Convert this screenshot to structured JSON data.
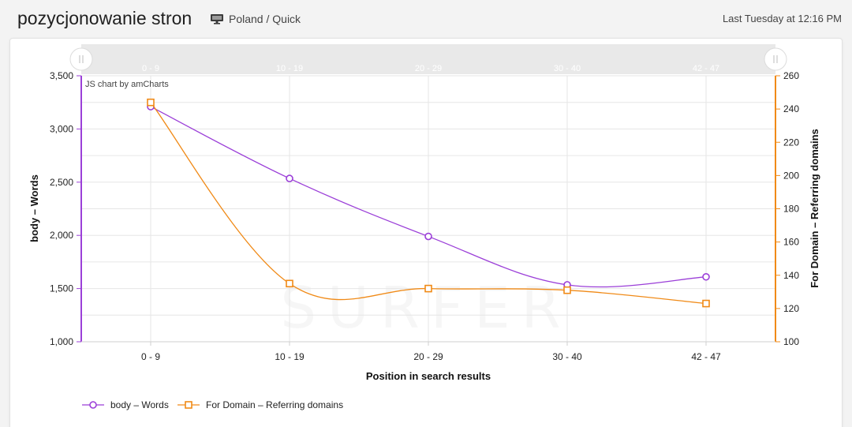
{
  "header": {
    "title": "pozycjonowanie stron",
    "region": "Poland / Quick",
    "timestamp": "Last Tuesday at 12:16 PM"
  },
  "chart_data": {
    "type": "line",
    "categories": [
      "0 - 9",
      "10 - 19",
      "20 - 29",
      "30 - 40",
      "42 - 47"
    ],
    "series": [
      {
        "name": "body – Words",
        "axis": "left",
        "values": [
          3210,
          2535,
          1990,
          1535,
          1610
        ],
        "color": "#9b3fd8",
        "marker": "circle"
      },
      {
        "name": "For Domain – Referring domains",
        "axis": "right",
        "values": [
          244,
          135,
          132,
          131,
          123
        ],
        "color": "#f08a17",
        "marker": "square"
      }
    ],
    "xlabel": "Position in search results",
    "ylabel_left": "body – Words",
    "ylabel_right": "For Domain – Referring domains",
    "ylim_left": [
      1000,
      3500
    ],
    "yticks_left": [
      "1,000",
      "1,500",
      "2,000",
      "2,500",
      "3,000",
      "3,500"
    ],
    "ylim_right": [
      100,
      260
    ],
    "yticks_right": [
      "100",
      "120",
      "140",
      "160",
      "180",
      "200",
      "220",
      "240",
      "260"
    ],
    "grid": true,
    "legend": "bottom-left",
    "credit": "JS chart by amCharts",
    "watermark": "SURFER",
    "scrollbar_labels": [
      "0 - 9",
      "10 - 19",
      "20 - 29",
      "30 - 40",
      "42 - 47"
    ]
  }
}
